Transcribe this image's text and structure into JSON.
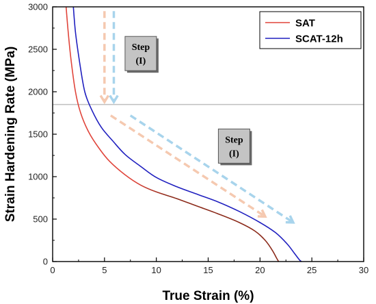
{
  "chart_data": {
    "type": "line",
    "xlabel": "True Strain (%)",
    "ylabel": "Strain Hardening Rate (MPa)",
    "xlim": [
      0,
      30
    ],
    "ylim": [
      0,
      3000
    ],
    "xticks": [
      0,
      5,
      10,
      15,
      20,
      25,
      30
    ],
    "yticks": [
      0,
      500,
      1000,
      1500,
      2000,
      2500,
      3000
    ],
    "grid": false,
    "legend_position": "top-right",
    "reference_line": {
      "y": 1850,
      "color": "#bfbfbf"
    },
    "series": [
      {
        "name": "SAT",
        "color": "#e0443a",
        "color_late": "#8b2a1a",
        "points": [
          [
            1.3,
            3000
          ],
          [
            1.5,
            2700
          ],
          [
            1.8,
            2350
          ],
          [
            2.2,
            2000
          ],
          [
            2.7,
            1750
          ],
          [
            3.5,
            1520
          ],
          [
            4.5,
            1330
          ],
          [
            5.5,
            1180
          ],
          [
            7,
            1020
          ],
          [
            8.5,
            900
          ],
          [
            10,
            820
          ],
          [
            12,
            740
          ],
          [
            14,
            650
          ],
          [
            16,
            560
          ],
          [
            18,
            460
          ],
          [
            19.5,
            360
          ],
          [
            20.5,
            250
          ],
          [
            21.2,
            130
          ],
          [
            21.6,
            40
          ],
          [
            21.8,
            0
          ]
        ]
      },
      {
        "name": "SCAT-12h",
        "color": "#1f1fbf",
        "points": [
          [
            2.0,
            3000
          ],
          [
            2.2,
            2700
          ],
          [
            2.6,
            2350
          ],
          [
            3.1,
            2000
          ],
          [
            3.8,
            1780
          ],
          [
            4.7,
            1580
          ],
          [
            5.8,
            1420
          ],
          [
            7,
            1260
          ],
          [
            8.5,
            1120
          ],
          [
            10,
            990
          ],
          [
            12,
            880
          ],
          [
            14,
            790
          ],
          [
            16,
            700
          ],
          [
            18,
            590
          ],
          [
            20,
            460
          ],
          [
            21.5,
            340
          ],
          [
            22.6,
            210
          ],
          [
            23.3,
            100
          ],
          [
            23.8,
            20
          ],
          [
            24.0,
            0
          ]
        ]
      }
    ],
    "annotations": [
      {
        "lines": [
          "Step",
          "(I)"
        ],
        "at": [
          8.5,
          2450
        ]
      },
      {
        "lines": [
          "Step",
          "(I)"
        ],
        "at": [
          17.5,
          1360
        ]
      }
    ],
    "arrows": [
      {
        "from": [
          5.0,
          2950
        ],
        "to": [
          5.0,
          1880
        ],
        "color": "#f5c9b0"
      },
      {
        "from": [
          5.9,
          2950
        ],
        "to": [
          5.9,
          1880
        ],
        "color": "#a8d4ec"
      },
      {
        "from": [
          5.6,
          1720
        ],
        "to": [
          20.5,
          530
        ],
        "color": "#f5c9b0"
      },
      {
        "from": [
          7.5,
          1720
        ],
        "to": [
          23.2,
          460
        ],
        "color": "#a8d4ec"
      }
    ]
  }
}
